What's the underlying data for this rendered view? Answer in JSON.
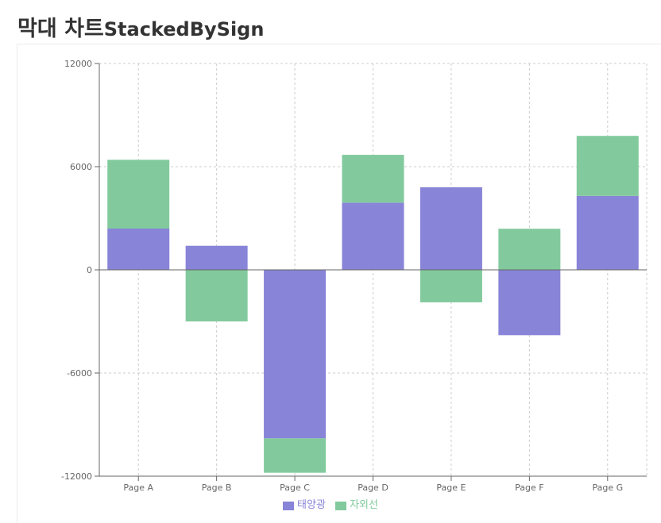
{
  "header": {
    "title": "막대 차트",
    "subtitle": "StackedBySign"
  },
  "chart_data": {
    "type": "bar",
    "stacking": "by-sign",
    "categories": [
      "Page A",
      "Page B",
      "Page C",
      "Page D",
      "Page E",
      "Page F",
      "Page G"
    ],
    "series": [
      {
        "name": "태양광",
        "color": "#8884d8",
        "values": [
          2400,
          1398,
          -9800,
          3908,
          4800,
          -3800,
          4300
        ]
      },
      {
        "name": "자외선",
        "color": "#82ca9d",
        "values": [
          4000,
          -3000,
          -2000,
          2780,
          -1890,
          2390,
          3490
        ]
      }
    ],
    "ylim": [
      -12000,
      12000
    ],
    "yticks": [
      -12000,
      -6000,
      0,
      6000,
      12000
    ],
    "grid": true,
    "legend_position": "bottom"
  }
}
